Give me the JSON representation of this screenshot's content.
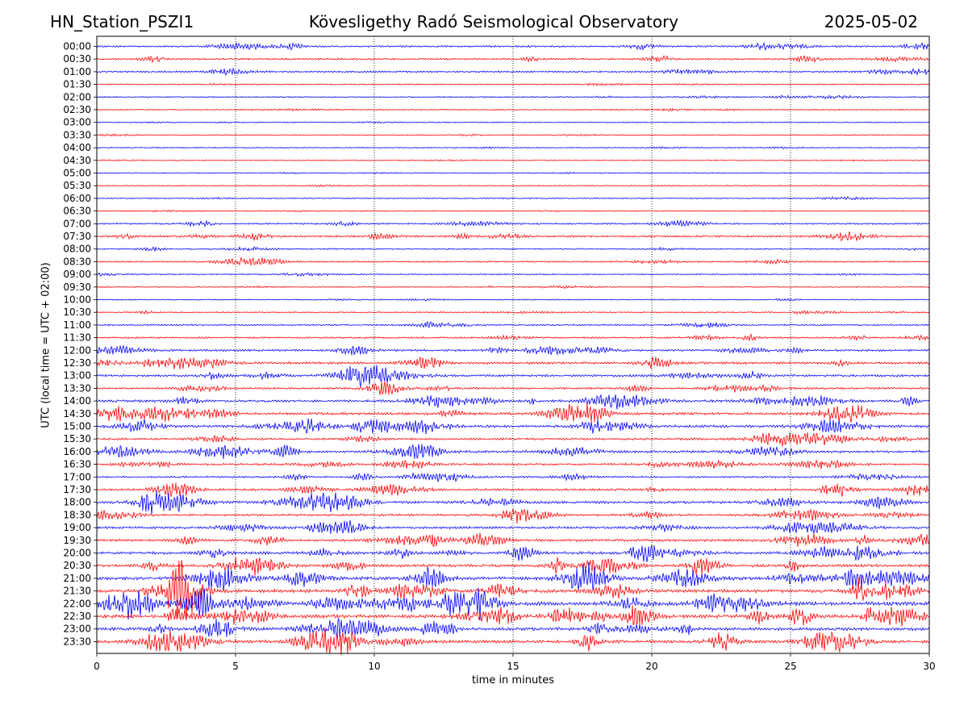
{
  "header": {
    "station": "HN_Station_PSZI1",
    "observatory": "Kövesligethy Radó Seismological Observatory",
    "date": "2025-05-02"
  },
  "chart_data": {
    "type": "line",
    "title": "Kövesligethy Radó Seismological Observatory",
    "xlabel": "time in minutes",
    "ylabel": "UTC (local time = UTC + 02:00)",
    "xlim": [
      0,
      30
    ],
    "x_ticks": [
      "0",
      "5",
      "10",
      "15",
      "20",
      "25",
      "30"
    ],
    "vertical_gridlines_at": [
      5,
      10,
      15,
      20,
      25
    ],
    "row_labels": [
      "00:00",
      "00:30",
      "01:00",
      "01:30",
      "02:00",
      "02:30",
      "03:00",
      "03:30",
      "04:00",
      "04:30",
      "05:00",
      "05:30",
      "06:00",
      "06:30",
      "07:00",
      "07:30",
      "08:00",
      "08:30",
      "09:00",
      "09:30",
      "10:00",
      "10:30",
      "11:00",
      "11:30",
      "12:00",
      "12:30",
      "13:00",
      "13:30",
      "14:00",
      "14:30",
      "15:00",
      "15:30",
      "16:00",
      "16:30",
      "17:00",
      "17:30",
      "18:00",
      "18:30",
      "19:00",
      "19:30",
      "20:00",
      "20:30",
      "21:00",
      "21:30",
      "22:00",
      "22:30",
      "23:00",
      "23:30"
    ],
    "trace_colors": [
      "#0000ff",
      "#ff0000"
    ],
    "relative_activity": [
      0.35,
      0.35,
      0.3,
      0.1,
      0.15,
      0.1,
      0.08,
      0.08,
      0.08,
      0.05,
      0.05,
      0.05,
      0.08,
      0.05,
      0.3,
      0.45,
      0.2,
      0.25,
      0.12,
      0.1,
      0.08,
      0.15,
      0.25,
      0.3,
      0.45,
      0.6,
      0.55,
      0.45,
      0.65,
      0.75,
      0.7,
      0.5,
      0.6,
      0.5,
      0.4,
      0.55,
      0.7,
      0.5,
      0.6,
      0.65,
      0.8,
      0.8,
      1.0,
      1.1,
      1.2,
      1.1,
      0.95,
      0.9
    ]
  }
}
